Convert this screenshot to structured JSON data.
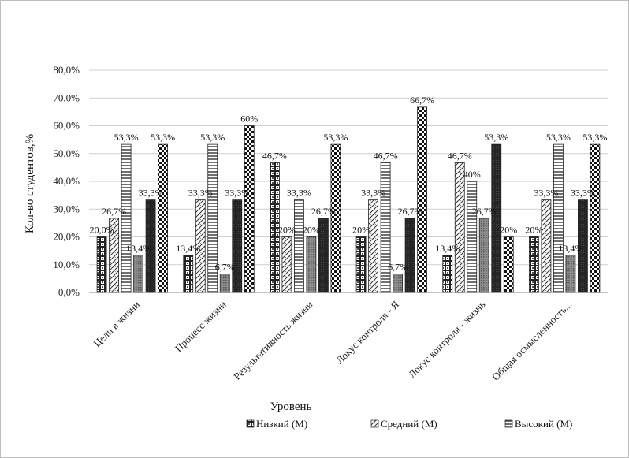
{
  "chart_data": {
    "type": "bar",
    "title": "",
    "xlabel": "Уровень",
    "ylabel": "Кол-во студентов,%",
    "ylim": [
      0,
      80
    ],
    "yticks": [
      "0,0%",
      "10,0%",
      "20,0%",
      "30,0%",
      "40,0%",
      "50,0%",
      "60,0%",
      "70,0%",
      "80,0%"
    ],
    "grid": true,
    "legend_position": "bottom",
    "categories": [
      "Цели в жизни",
      "Процесс жизни",
      "Результативность жизни",
      "Локус контроля - Я",
      "Локус контроля - жизнь",
      "Общая осмысленность..."
    ],
    "series": [
      {
        "values": [
          20.0,
          13.4,
          46.7,
          20.0,
          13.4,
          20.0
        ],
        "labels": [
          "20,0%",
          "13,4%",
          "46,7%",
          "20%",
          "13,4%",
          "20%"
        ],
        "pattern": "brick"
      },
      {
        "values": [
          26.7,
          33.3,
          20.0,
          33.3,
          46.7,
          33.3
        ],
        "labels": [
          "26,7%",
          "33,3%",
          "20%",
          "33,3%",
          "46,7%",
          "33,3%"
        ],
        "pattern": "diag"
      },
      {
        "values": [
          53.3,
          53.3,
          33.3,
          46.7,
          40.0,
          53.3
        ],
        "labels": [
          "53,3%",
          "53,3%",
          "33,3%",
          "46,7%",
          "40%",
          "53,3%"
        ],
        "pattern": "hlines"
      },
      {
        "values": [
          13.4,
          6.7,
          20.0,
          6.7,
          26.7,
          13.4
        ],
        "labels": [
          "13,4%",
          "6,7%",
          "20%",
          "6,7%",
          "26,7%",
          "13,4%"
        ],
        "pattern": "fine"
      },
      {
        "values": [
          33.3,
          33.3,
          26.7,
          26.7,
          53.3,
          33.3
        ],
        "labels": [
          "33,3%",
          "33,3%",
          "26,7%",
          "26,7%",
          "53,3%",
          "33,3%"
        ],
        "pattern": "dark"
      },
      {
        "values": [
          53.3,
          60.0,
          53.3,
          66.7,
          20.0,
          53.3
        ],
        "labels": [
          "53,3%",
          "60%",
          "53,3%",
          "66,7%",
          "20%",
          "53,3%"
        ],
        "pattern": "checker"
      }
    ],
    "legend": [
      {
        "label": "Низкий (М)",
        "pattern": "brick"
      },
      {
        "label": "Средний (М)",
        "pattern": "diag"
      },
      {
        "label": "Высокий (М)",
        "pattern": "hlines"
      }
    ]
  }
}
